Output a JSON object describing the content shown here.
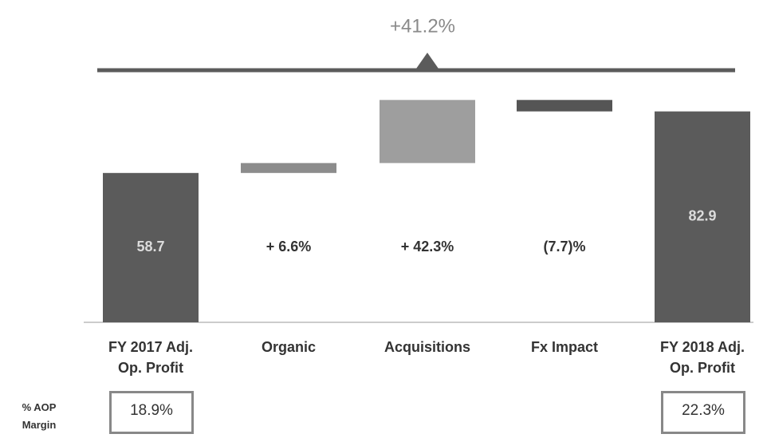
{
  "chart_data": {
    "type": "waterfall",
    "annotation": "+41.2%",
    "categories": [
      "FY 2017 Adj. Op. Profit",
      "Organic",
      "Acquisitions",
      "Fx Impact",
      "FY 2018 Adj. Op. Profit"
    ],
    "values": [
      58.7,
      3.9,
      24.8,
      -4.5,
      82.9
    ],
    "total": [
      true,
      false,
      false,
      false,
      true
    ],
    "colors": [
      "#5b5b5b",
      "#8c8c8c",
      "#9e9e9e",
      "#555555",
      "#5b5b5b"
    ],
    "value_labels": [
      "58.7",
      null,
      null,
      null,
      "82.9"
    ],
    "change_labels": [
      null,
      "+ 6.6%",
      "+ 42.3%",
      "(7.7)%",
      null
    ],
    "ylim": [
      0,
      90
    ],
    "margin_label": "% AOP Margin",
    "margins": [
      {
        "index": 0,
        "label": "18.9%"
      },
      {
        "index": 4,
        "label": "22.3%"
      }
    ]
  }
}
